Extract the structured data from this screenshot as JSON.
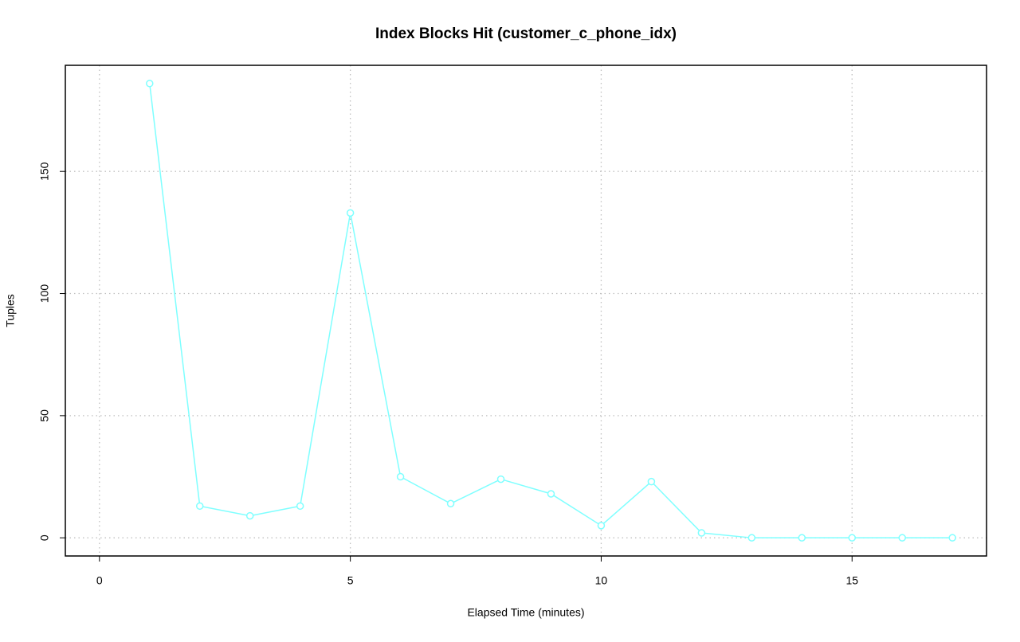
{
  "chart_data": {
    "type": "line",
    "title": "Index Blocks Hit (customer_c_phone_idx)",
    "x_label": "Elapsed Time (minutes)",
    "y_label": "Tuples",
    "x": [
      1,
      2,
      3,
      4,
      5,
      6,
      7,
      8,
      9,
      10,
      11,
      12,
      13,
      14,
      15,
      16,
      17
    ],
    "series": [
      {
        "name": "customer_c_phone_idx",
        "color": "#7fffff",
        "values": [
          186,
          13,
          9,
          13,
          133,
          25,
          14,
          24,
          18,
          5,
          23,
          2,
          0,
          0,
          0,
          0,
          0
        ]
      }
    ],
    "xlim": [
      -0.68,
      17.68
    ],
    "ylim": [
      -7.44,
      193.44
    ],
    "xticks": [
      0,
      5,
      10,
      15
    ],
    "yticks": [
      0,
      50,
      100,
      150
    ],
    "grid": true,
    "markers": true
  }
}
